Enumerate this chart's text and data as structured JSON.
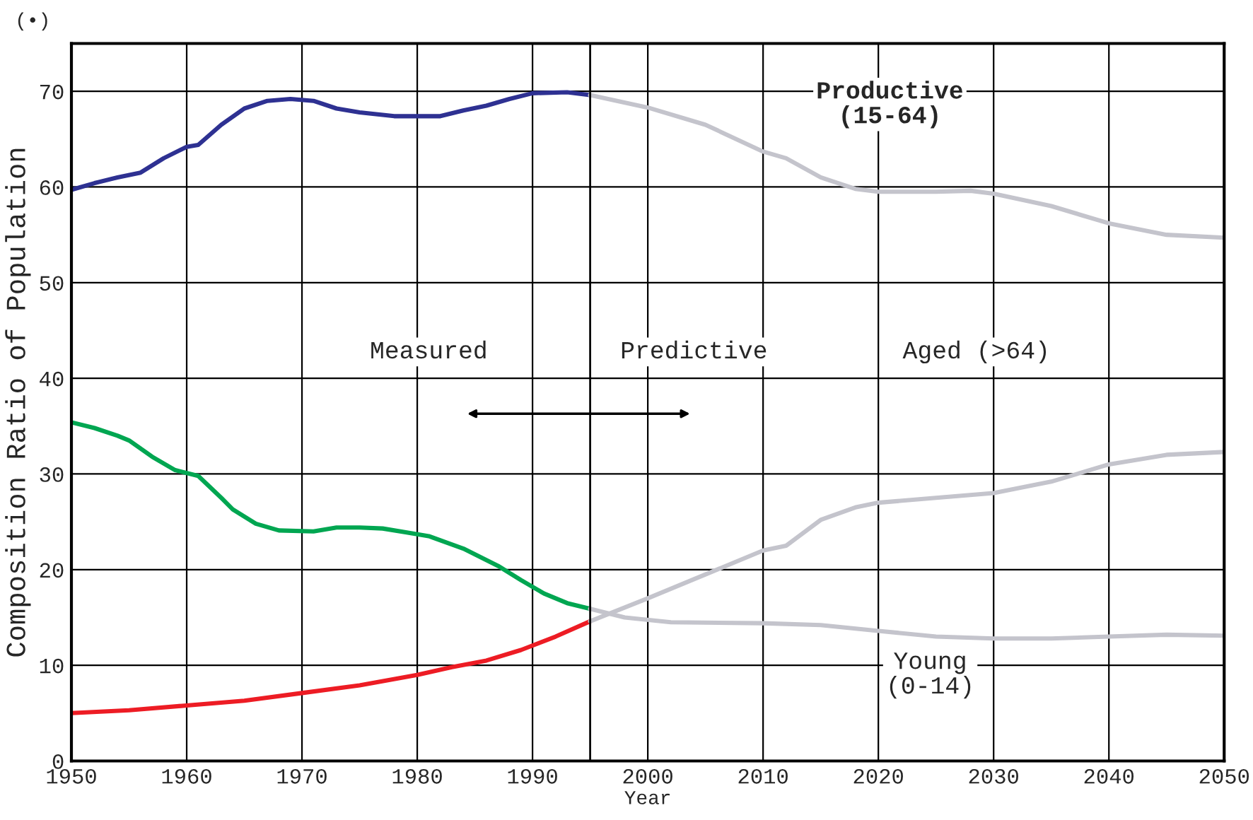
{
  "chart_data": {
    "type": "line",
    "xlabel": "Year",
    "ylabel": "Composition Ratio of Population",
    "xlim": [
      1950,
      2050
    ],
    "xticks": [
      1950,
      1960,
      1970,
      1980,
      1990,
      2000,
      2010,
      2020,
      2030,
      2040,
      2050
    ],
    "ylim": [
      0,
      75
    ],
    "yticks": [
      0,
      10,
      20,
      30,
      40,
      50,
      60,
      70
    ],
    "grid": true,
    "legend": false,
    "marker": "none",
    "line_style": "solid",
    "ref_lines": [
      {
        "axis": "x",
        "value": 1995,
        "label": null,
        "color": "#000000"
      }
    ],
    "annotations": [
      "(•)",
      "Productive\n(15-64)",
      "Aged (>64)",
      "Young\n(0-14)",
      "Measured",
      "Predictive"
    ],
    "series": [
      {
        "color": "#2e3192",
        "x": [
          1950,
          1952,
          1954,
          1956,
          1958,
          1960,
          1961,
          1963,
          1965,
          1967,
          1969,
          1971,
          1973,
          1975,
          1978,
          1980,
          1982,
          1984,
          1986,
          1988,
          1990,
          1993,
          1995
        ],
        "values": [
          59.7,
          60.4,
          61,
          61.5,
          63,
          64.2,
          64.4,
          66.5,
          68.2,
          69,
          69.2,
          69,
          68.2,
          67.8,
          67.4,
          67.4,
          67.4,
          68,
          68.5,
          69.2,
          69.8,
          69.9,
          69.6
        ]
      },
      {
        "color": "#c4c4cc",
        "x": [
          1995,
          2000,
          2005,
          2010,
          2012,
          2015,
          2018,
          2020,
          2025,
          2028,
          2030,
          2035,
          2040,
          2045,
          2050
        ],
        "values": [
          69.6,
          68.3,
          66.5,
          63.7,
          63,
          61,
          59.8,
          59.5,
          59.5,
          59.6,
          59.3,
          58,
          56.2,
          55,
          54.7
        ]
      },
      {
        "color": "#00a651",
        "x": [
          1950,
          1952,
          1954,
          1955,
          1957,
          1959,
          1961,
          1963,
          1964,
          1966,
          1968,
          1971,
          1973,
          1975,
          1977,
          1979,
          1981,
          1984,
          1987,
          1989,
          1991,
          1993,
          1995
        ],
        "values": [
          35.4,
          34.8,
          34,
          33.5,
          31.8,
          30.4,
          29.8,
          27.5,
          26.3,
          24.8,
          24.1,
          24,
          24.4,
          24.4,
          24.3,
          23.9,
          23.5,
          22.2,
          20.4,
          18.9,
          17.5,
          16.5,
          15.9
        ]
      },
      {
        "color": "#c4c4cc",
        "x": [
          1995,
          1998,
          2002,
          2010,
          2015,
          2020,
          2025,
          2030,
          2035,
          2040,
          2045,
          2050
        ],
        "values": [
          15.9,
          15,
          14.5,
          14.4,
          14.2,
          13.6,
          13,
          12.8,
          12.8,
          13,
          13.2,
          13.1
        ]
      },
      {
        "color": "#ed1c24",
        "x": [
          1950,
          1955,
          1960,
          1965,
          1970,
          1975,
          1980,
          1983,
          1986,
          1989,
          1992,
          1995
        ],
        "values": [
          5,
          5.3,
          5.8,
          6.3,
          7.1,
          7.9,
          9,
          9.8,
          10.5,
          11.6,
          13,
          14.6
        ]
      },
      {
        "color": "#c4c4cc",
        "x": [
          1995,
          2000,
          2005,
          2010,
          2012,
          2015,
          2018,
          2020,
          2025,
          2030,
          2035,
          2040,
          2045,
          2050
        ],
        "values": [
          14.6,
          17,
          19.5,
          22,
          22.5,
          25.2,
          26.5,
          27,
          27.5,
          28,
          29.2,
          31,
          32,
          32.3
        ]
      }
    ]
  }
}
